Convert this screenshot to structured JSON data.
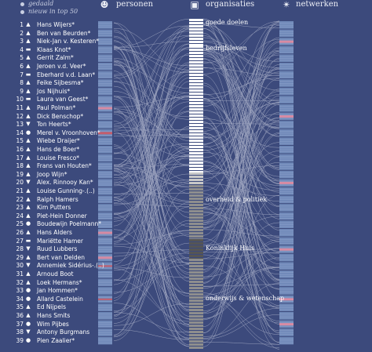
{
  "legend": {
    "items": [
      "gedaald",
      "nieuw in top 50"
    ]
  },
  "headers": {
    "personen": {
      "label": "personen",
      "icon": "person-icon"
    },
    "organisaties": {
      "label": "organisaties",
      "icon": "briefcase-icon"
    },
    "netwerken": {
      "label": "netwerken",
      "icon": "network-star-icon"
    }
  },
  "people": [
    {
      "rank": "1",
      "mark": "▲",
      "name": "Hans Wijers*"
    },
    {
      "rank": "2",
      "mark": "▲",
      "name": "Ben van Beurden*"
    },
    {
      "rank": "3",
      "mark": "▲",
      "name": "Niek-Jan v. Kesteren*"
    },
    {
      "rank": "4",
      "mark": "▬",
      "name": "Klaas Knot*"
    },
    {
      "rank": "5",
      "mark": "▲",
      "name": "Gerrit Zalm*"
    },
    {
      "rank": "6",
      "mark": "▲",
      "name": "Jeroen v.d. Veer*"
    },
    {
      "rank": "7",
      "mark": "▬",
      "name": "Eberhard v.d. Laan*"
    },
    {
      "rank": "8",
      "mark": "▲",
      "name": "Feike Sijbesma*"
    },
    {
      "rank": "9",
      "mark": "▲",
      "name": "Jos Nijhuis*"
    },
    {
      "rank": "10",
      "mark": "▬",
      "name": "Laura van Geest*"
    },
    {
      "rank": "11",
      "mark": "▲",
      "name": "Paul Polman*"
    },
    {
      "rank": "12",
      "mark": "▲",
      "name": "Dick Benschop*"
    },
    {
      "rank": "13",
      "mark": "▼",
      "name": "Ton Heerts*"
    },
    {
      "rank": "14",
      "mark": "●",
      "name": "Merel v. Vroonhoven*"
    },
    {
      "rank": "15",
      "mark": "▲",
      "name": "Wiebe Draijer*"
    },
    {
      "rank": "16",
      "mark": "▲",
      "name": "Hans de Boer*"
    },
    {
      "rank": "17",
      "mark": "▲",
      "name": "Louise Fresco*"
    },
    {
      "rank": "18",
      "mark": "▲",
      "name": "Frans van Houten*"
    },
    {
      "rank": "19",
      "mark": "▲",
      "name": "Joop Wijn*"
    },
    {
      "rank": "20",
      "mark": "▼",
      "name": "Alex. Rinnooy Kan*"
    },
    {
      "rank": "21",
      "mark": "▲",
      "name": "Louise Gunning-.(..)"
    },
    {
      "rank": "22",
      "mark": "▲",
      "name": "Ralph Hamers"
    },
    {
      "rank": "23",
      "mark": "▲",
      "name": "Kim Putters"
    },
    {
      "rank": "24",
      "mark": "▲",
      "name": "Piet-Hein Donner"
    },
    {
      "rank": "25",
      "mark": "●",
      "name": "Boudewijn Poelmann*"
    },
    {
      "rank": "26",
      "mark": "▲",
      "name": "Hans Alders"
    },
    {
      "rank": "27",
      "mark": "▬",
      "name": "Mariëtte Hamer"
    },
    {
      "rank": "28",
      "mark": "▼",
      "name": "Ruud Lubbers"
    },
    {
      "rank": "29",
      "mark": "▲",
      "name": "Bert van Delden"
    },
    {
      "rank": "30",
      "mark": "▼",
      "name": "Annemiek Sidérius-.(..)"
    },
    {
      "rank": "31",
      "mark": "▲",
      "name": "Arnoud Boot"
    },
    {
      "rank": "32",
      "mark": "▲",
      "name": "Loek Hermans*"
    },
    {
      "rank": "33",
      "mark": "●",
      "name": "Jan Hommen*"
    },
    {
      "rank": "34",
      "mark": "●",
      "name": "Allard Castelein"
    },
    {
      "rank": "35",
      "mark": "▲",
      "name": "Ed Nijpels"
    },
    {
      "rank": "36",
      "mark": "▲",
      "name": "Hans Smits"
    },
    {
      "rank": "37",
      "mark": "●",
      "name": "Wim Pijbes"
    },
    {
      "rank": "38",
      "mark": "▼",
      "name": "Antony Burgmans"
    },
    {
      "rank": "39",
      "mark": "●",
      "name": "Pien Zaalier*"
    }
  ],
  "categories": [
    {
      "label": "goede doelen"
    },
    {
      "label": "bedrijfsleven"
    },
    {
      "label": "overheid & politiek"
    },
    {
      "label": "Koninklijk Huis"
    },
    {
      "label": "onderwijs & wetenschap"
    }
  ],
  "colors": {
    "background": "#3c4a7c",
    "bar_blue": "#6f88b8",
    "bar_pink": "#d88ba3",
    "bar_red": "#c55d6c",
    "lines": "#e6e8f2",
    "org_white": "#ffffff",
    "org_light": "#c8c8c8",
    "org_mid": "#8e8e8e",
    "org_dark": "#555555"
  }
}
